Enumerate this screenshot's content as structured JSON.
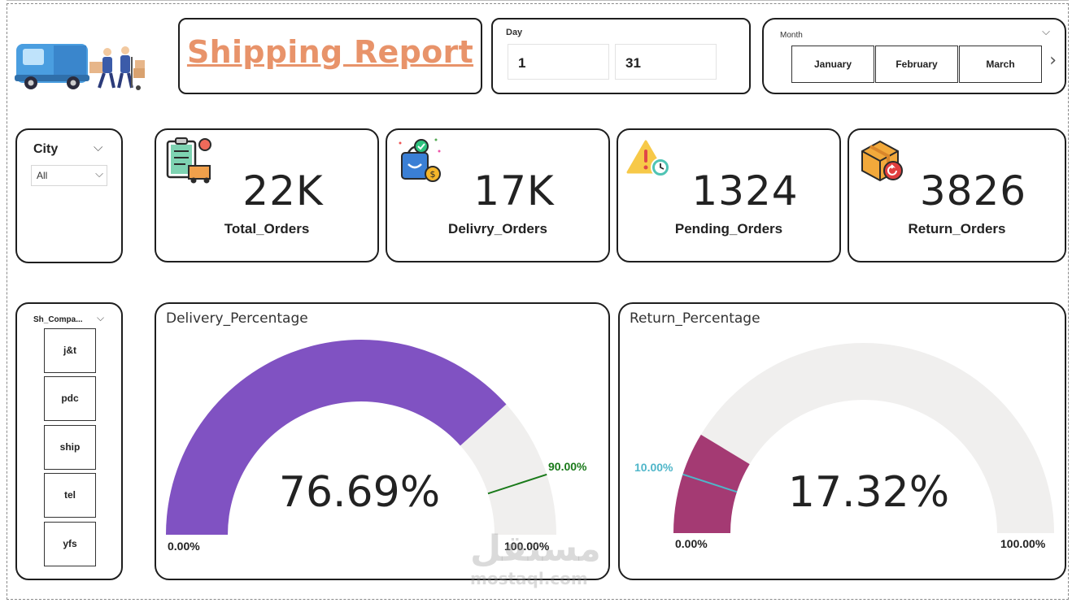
{
  "report": {
    "title": "Shipping Report"
  },
  "day_slicer": {
    "caption": "Day",
    "from": "1",
    "to": "31"
  },
  "month_slicer": {
    "caption": "Month",
    "options": [
      "January",
      "February",
      "March"
    ]
  },
  "city_slicer": {
    "caption": "City",
    "selected": "All"
  },
  "company_slicer": {
    "caption": "Sh_Compa...",
    "options": [
      "j&t",
      "pdc",
      "ship",
      "tel",
      "yfs"
    ]
  },
  "kpis": [
    {
      "value": "22K",
      "label": "Total_Orders",
      "icon": "clipboard-delivery-icon"
    },
    {
      "value": "17K",
      "label": "Delivry_Orders",
      "icon": "shopping-bag-icon"
    },
    {
      "value": "1324",
      "label": "Pending_Orders",
      "icon": "warning-clock-icon"
    },
    {
      "value": "3826",
      "label": "Return_Orders",
      "icon": "return-box-icon"
    }
  ],
  "gauges": [
    {
      "title": "Delivery_Percentage",
      "value": 76.69,
      "value_text": "76.69%",
      "min_text": "0.00%",
      "max_text": "100.00%",
      "target": 90,
      "target_text": "90.00%",
      "fill_color": "#8052c2",
      "target_color": "#1a7a1a"
    },
    {
      "title": "Return_Percentage",
      "value": 17.32,
      "value_text": "17.32%",
      "min_text": "0.00%",
      "max_text": "100.00%",
      "target": 10,
      "target_text": "10.00%",
      "fill_color": "#a43a73",
      "target_color": "#4fb6c9"
    }
  ],
  "colors": {
    "title": "#e8936a",
    "track": "#f0efee"
  },
  "watermark": {
    "arabic": "مستقل",
    "latin": "mostaql.com"
  }
}
